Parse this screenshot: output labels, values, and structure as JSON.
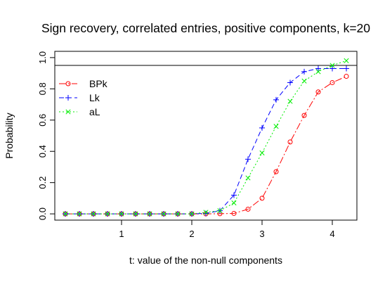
{
  "chart_data": {
    "type": "line",
    "title": "Sign recovery, correlated entries, positive components, k=20",
    "xlabel": "t:  value of the non-null components",
    "ylabel": "Probability",
    "xlim": [
      0.05,
      4.35
    ],
    "ylim": [
      -0.04,
      1.04
    ],
    "x_ticks": [
      1,
      2,
      3,
      4
    ],
    "x_tick_labels": [
      "1",
      "2",
      "3",
      "4"
    ],
    "y_ticks": [
      0.0,
      0.2,
      0.4,
      0.6,
      0.8,
      1.0
    ],
    "y_tick_labels": [
      "0.0",
      "0.2",
      "0.4",
      "0.6",
      "0.8",
      "1.0"
    ],
    "reference_line": 0.95,
    "grid": false,
    "legend_position": "top-left",
    "x": [
      0.2,
      0.4,
      0.6,
      0.8,
      1.0,
      1.2,
      1.4,
      1.6,
      1.8,
      2.0,
      2.2,
      2.4,
      2.6,
      2.8,
      3.0,
      3.2,
      3.4,
      3.6,
      3.8,
      4.0,
      4.2
    ],
    "series": [
      {
        "name": "BPk",
        "color": "#ff0000",
        "marker": "circle",
        "dash": "10,3,2,3",
        "values": [
          0,
          0,
          0,
          0,
          0,
          0,
          0,
          0,
          0,
          0,
          0,
          0.001,
          0.003,
          0.03,
          0.1,
          0.27,
          0.46,
          0.63,
          0.78,
          0.84,
          0.88
        ]
      },
      {
        "name": "Lk",
        "color": "#0000ff",
        "marker": "plus",
        "dash": "7,4",
        "values": [
          0,
          0,
          0,
          0,
          0,
          0,
          0,
          0,
          0,
          0,
          0.003,
          0.02,
          0.12,
          0.35,
          0.55,
          0.73,
          0.84,
          0.91,
          0.93,
          0.93,
          0.93
        ]
      },
      {
        "name": "aL",
        "color": "#00ee00",
        "marker": "cross",
        "dash": "2,3",
        "values": [
          0,
          0,
          0,
          0,
          0,
          0,
          0,
          0,
          0,
          0,
          0.01,
          0.02,
          0.07,
          0.23,
          0.39,
          0.56,
          0.72,
          0.85,
          0.91,
          0.95,
          0.98
        ]
      }
    ]
  }
}
